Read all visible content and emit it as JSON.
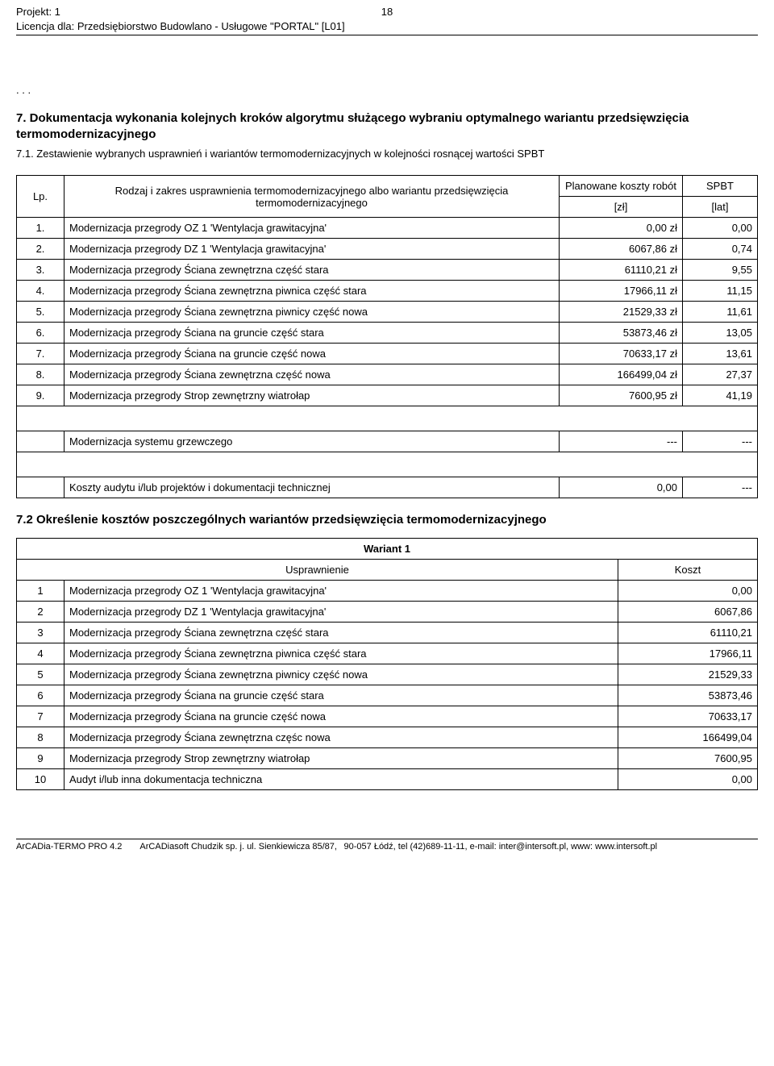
{
  "header": {
    "line1": "Projekt: 1",
    "line2": "Licencja dla: Przedsiębiorstwo Budowlano - Usługowe \"PORTAL\" [L01]",
    "page_number": "18"
  },
  "dots": ". . .",
  "section7": {
    "title": "7. Dokumentacja wykonania kolejnych kroków algorytmu służącego wybraniu optymalnego wariantu przedsięwzięcia termomodernizacyjnego",
    "sub": "7.1. Zestawienie wybranych usprawnień i wariantów termomodernizacyjnych w kolejności rosnącej wartości SPBT"
  },
  "table1": {
    "head_lp": "Lp.",
    "head_desc": "Rodzaj i zakres usprawnienia termomodernizacyjnego albo wariantu przedsięwzięcia termomodernizacyjnego",
    "head_cost_top": "Planowane koszty robót",
    "head_cost_unit": "[zł]",
    "head_spbt_top": "SPBT",
    "head_spbt_unit": "[lat]",
    "rows": [
      {
        "lp": "1.",
        "desc": "Modernizacja przegrody OZ 1 'Wentylacja grawitacyjna'",
        "cost": "0,00 zł",
        "spbt": "0,00"
      },
      {
        "lp": "2.",
        "desc": "Modernizacja przegrody DZ 1 'Wentylacja grawitacyjna'",
        "cost": "6067,86 zł",
        "spbt": "0,74"
      },
      {
        "lp": "3.",
        "desc": "Modernizacja przegrody Ściana zewnętrzna część stara",
        "cost": "61110,21 zł",
        "spbt": "9,55"
      },
      {
        "lp": "4.",
        "desc": "Modernizacja przegrody Ściana zewnętrzna piwnica część stara",
        "cost": "17966,11 zł",
        "spbt": "11,15"
      },
      {
        "lp": "5.",
        "desc": "Modernizacja przegrody Ściana zewnętrzna piwnicy część nowa",
        "cost": "21529,33 zł",
        "spbt": "11,61"
      },
      {
        "lp": "6.",
        "desc": "Modernizacja przegrody Ściana na gruncie część stara",
        "cost": "53873,46 zł",
        "spbt": "13,05"
      },
      {
        "lp": "7.",
        "desc": "Modernizacja przegrody Ściana na gruncie część nowa",
        "cost": "70633,17 zł",
        "spbt": "13,61"
      },
      {
        "lp": "8.",
        "desc": "Modernizacja przegrody Ściana zewnętrzna część nowa",
        "cost": "166499,04 zł",
        "spbt": "27,37"
      },
      {
        "lp": "9.",
        "desc": "Modernizacja przegrody Strop zewnętrzny wiatrołap",
        "cost": "7600,95 zł",
        "spbt": "41,19"
      }
    ],
    "summary1": {
      "desc": "Modernizacja systemu grzewczego",
      "cost": "---",
      "spbt": "---"
    },
    "summary2": {
      "desc": "Koszty audytu i/lub projektów i dokumentacji technicznej",
      "cost": "0,00",
      "spbt": "---"
    }
  },
  "section72": {
    "title": "7.2 Określenie kosztów poszczególnych wariantów przedsięwzięcia termomodernizacyjnego"
  },
  "table2": {
    "wariant": "Wariant 1",
    "head_usp": "Usprawnienie",
    "head_koszt": "Koszt",
    "rows": [
      {
        "lp": "1",
        "desc": "Modernizacja przegrody OZ 1 'Wentylacja grawitacyjna'",
        "koszt": "0,00"
      },
      {
        "lp": "2",
        "desc": "Modernizacja przegrody DZ 1 'Wentylacja grawitacyjna'",
        "koszt": "6067,86"
      },
      {
        "lp": "3",
        "desc": "Modernizacja przegrody Ściana zewnętrzna część stara",
        "koszt": "61110,21"
      },
      {
        "lp": "4",
        "desc": "Modernizacja przegrody Ściana zewnętrzna piwnica część stara",
        "koszt": "17966,11"
      },
      {
        "lp": "5",
        "desc": "Modernizacja przegrody Ściana zewnętrzna piwnicy część nowa",
        "koszt": "21529,33"
      },
      {
        "lp": "6",
        "desc": "Modernizacja przegrody Ściana na gruncie część stara",
        "koszt": "53873,46"
      },
      {
        "lp": "7",
        "desc": "Modernizacja przegrody Ściana na gruncie część nowa",
        "koszt": "70633,17"
      },
      {
        "lp": "8",
        "desc": "Modernizacja przegrody Ściana zewnętrzna częśc nowa",
        "koszt": "166499,04"
      },
      {
        "lp": "9",
        "desc": "Modernizacja przegrody Strop zewnętrzny wiatrołap",
        "koszt": "7600,95"
      },
      {
        "lp": "10",
        "desc": "Audyt i/lub inna dokumentacja techniczna",
        "koszt": "0,00"
      }
    ]
  },
  "footer": {
    "text": "ArCADia-TERMO PRO 4.2  ArCADiasoft Chudzik sp. j. ul. Sienkiewicza 85/87,  90-057 Łódź, tel (42)689-11-11, e-mail: inter@intersoft.pl, www: www.intersoft.pl"
  }
}
